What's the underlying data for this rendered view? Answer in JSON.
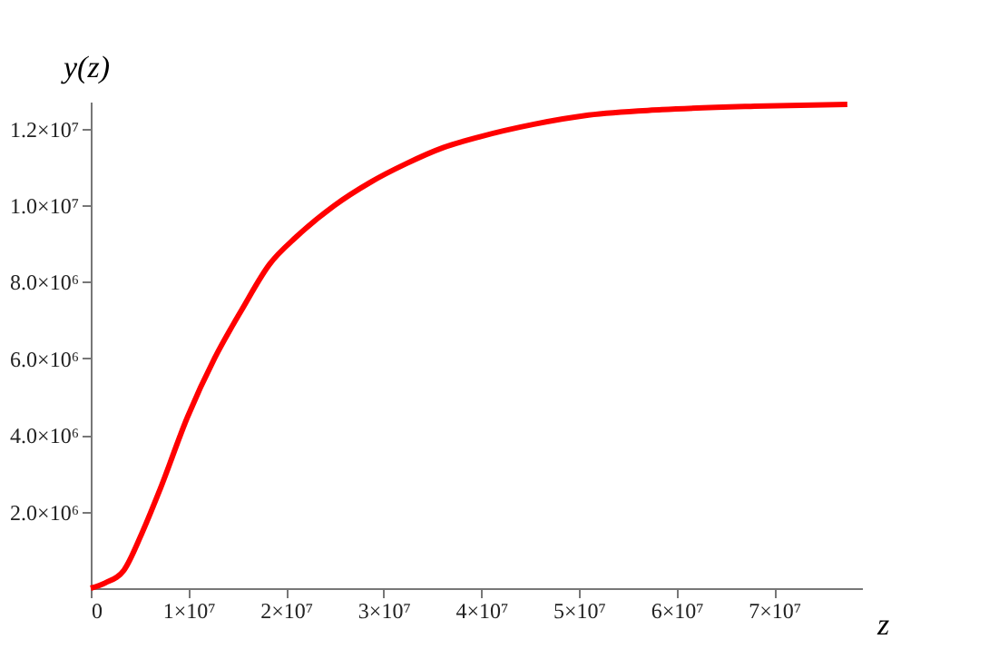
{
  "chart_data": {
    "type": "line",
    "xlabel": "z",
    "ylabel": "y(z)",
    "x": [
      0,
      1500000.0,
      3400000.0,
      5200000.0,
      7100000.0,
      9900000.0,
      12700000.0,
      15500000.0,
      18300000.0,
      21100000.0,
      24900000.0,
      28600000.0,
      32300000.0,
      36100000.0,
      39800000.0,
      45400000.0,
      51000000.0,
      58500000.0,
      68000000.0,
      77500000.0
    ],
    "series": [
      {
        "color": "#ff0000",
        "values": [
          0,
          140000.0,
          470000.0,
          1410000.0,
          2580000.0,
          4460000.0,
          6010000.0,
          7280000.0,
          8450000.0,
          9180000.0,
          9980000.0,
          10590000.0,
          11080000.0,
          11500000.0,
          11780000.0,
          12110000.0,
          12350000.0,
          12490000.0,
          12580000.0,
          12630000.0
        ]
      }
    ],
    "xlim": [
      0,
      79000000.0
    ],
    "ylim": [
      0,
      12700000.0
    ],
    "xticks": [
      0,
      {
        "value": 10000000.0,
        "label": "1×10⁷"
      },
      {
        "value": 20000000.0,
        "label": "2×10⁷"
      },
      {
        "value": 30000000.0,
        "label": "3×10⁷"
      },
      {
        "value": 40000000.0,
        "label": "4×10⁷"
      },
      {
        "value": 50000000.0,
        "label": "5×10⁷"
      },
      {
        "value": 60000000.0,
        "label": "6×10⁷"
      },
      {
        "value": 70000000.0,
        "label": "7×10⁷"
      }
    ],
    "yticks": [
      {
        "value": 2000000.0,
        "label": "2.0×10⁶"
      },
      {
        "value": 4000000.0,
        "label": "4.0×10⁶"
      },
      {
        "value": 6000000.0,
        "label": "6.0×10⁶"
      },
      {
        "value": 8000000.0,
        "label": "8.0×10⁶"
      },
      {
        "value": 10000000.0,
        "label": "1.0×10⁷"
      },
      {
        "value": 12000000.0,
        "label": "1.2×10⁷"
      }
    ],
    "grid": false,
    "marker": "none",
    "line_style": "solid"
  }
}
